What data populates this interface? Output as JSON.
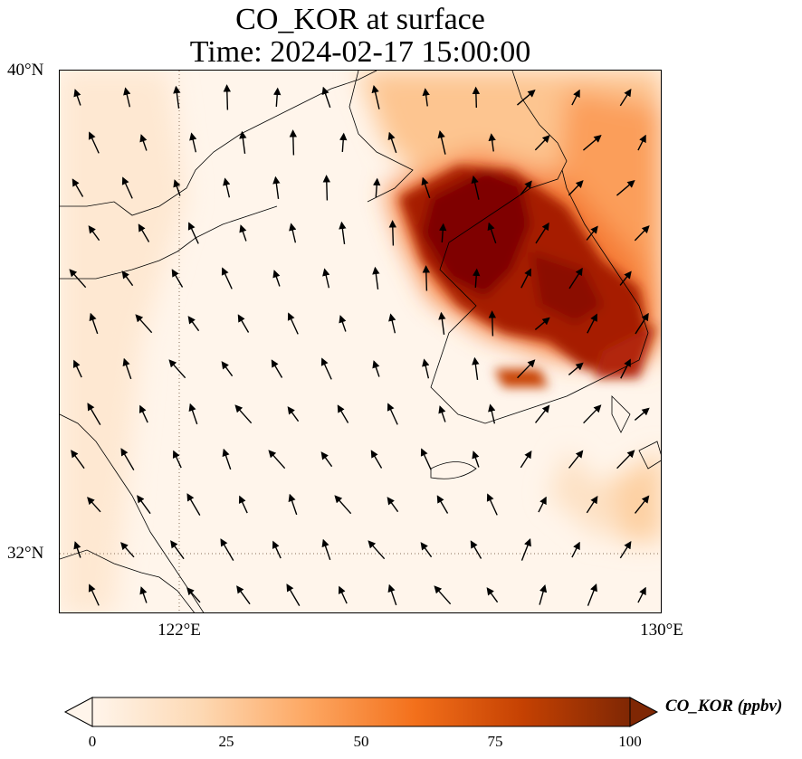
{
  "title": {
    "line1": "CO_KOR at surface",
    "line2": "Time: 2024-02-17 15:00:00"
  },
  "axes": {
    "x_ticks": [
      "122°E",
      "130°E"
    ],
    "y_ticks": [
      "40°N",
      "32°N"
    ]
  },
  "colorbar": {
    "label": "CO_KOR (ppbv)",
    "ticks": [
      "0",
      "25",
      "50",
      "75",
      "100"
    ],
    "colors": [
      "#fff5eb",
      "#fdd9b4",
      "#fda762",
      "#f3701b",
      "#c54102",
      "#7f2704"
    ]
  },
  "map": {
    "extent": {
      "lon": [
        120,
        130
      ],
      "lat": [
        31,
        40
      ]
    },
    "field": "CO_KOR",
    "units": "ppbv",
    "vector_field": "wind"
  }
}
